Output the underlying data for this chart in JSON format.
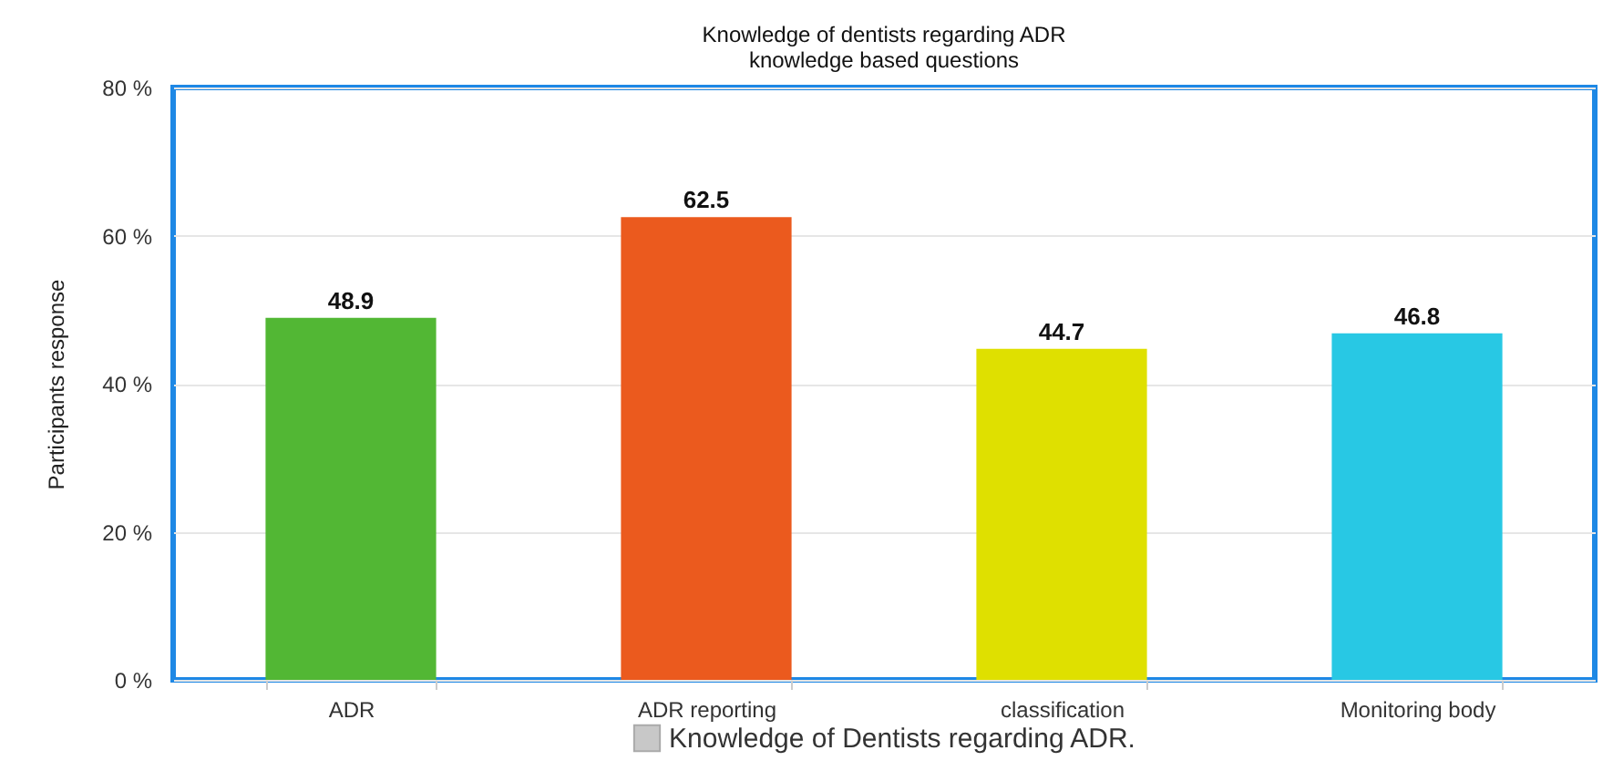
{
  "chart_data": {
    "type": "bar",
    "title": "Knowledge of dentists regarding ADR\nknowledge based questions",
    "ylabel": "Participants response",
    "categories": [
      "ADR",
      "ADR reporting",
      "classification",
      "Monitoring body"
    ],
    "series": [
      {
        "name": "Knowledge of Dentists regarding ADR.",
        "color": "#c8c8c8",
        "colors": [
          "#52b734",
          "#eb5a1e",
          "#dfe000",
          "#28c8e4"
        ],
        "values": [
          48.9,
          62.5,
          44.7,
          46.8
        ]
      }
    ],
    "ylim": [
      0,
      80
    ],
    "yticks": [
      {
        "value": 0,
        "label": "0 %"
      },
      {
        "value": 20,
        "label": "20 %"
      },
      {
        "value": 40,
        "label": "40 %"
      },
      {
        "value": 60,
        "label": "60 %"
      },
      {
        "value": 80,
        "label": "80 %"
      }
    ],
    "grid": "y",
    "legend": "bottom",
    "data_labels": true
  }
}
